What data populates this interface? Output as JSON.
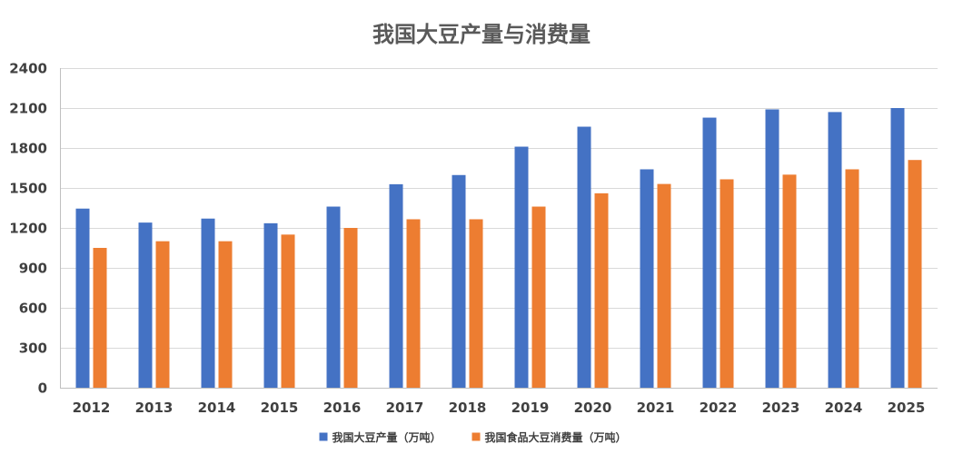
{
  "chart_data": {
    "type": "bar",
    "title": "我国大豆产量与消费量",
    "xlabel": "",
    "ylabel": "",
    "ylim": [
      0,
      2400
    ],
    "yticks": [
      0,
      300,
      600,
      900,
      1200,
      1500,
      1800,
      2100,
      2400
    ],
    "grid": true,
    "legend_position": "bottom",
    "categories": [
      "2012",
      "2013",
      "2014",
      "2015",
      "2016",
      "2017",
      "2018",
      "2019",
      "2020",
      "2021",
      "2022",
      "2023",
      "2024",
      "2025"
    ],
    "series": [
      {
        "name": "我国大豆产量（万吨）",
        "color": "#4472C4",
        "values": [
          1345,
          1240,
          1270,
          1235,
          1360,
          1528,
          1597,
          1810,
          1960,
          1640,
          2028,
          2090,
          2070,
          2100
        ]
      },
      {
        "name": "我国食品大豆消费量（万吨）",
        "color": "#ED7D31",
        "values": [
          1050,
          1100,
          1100,
          1150,
          1200,
          1265,
          1265,
          1360,
          1460,
          1530,
          1565,
          1600,
          1640,
          1710
        ]
      }
    ]
  }
}
